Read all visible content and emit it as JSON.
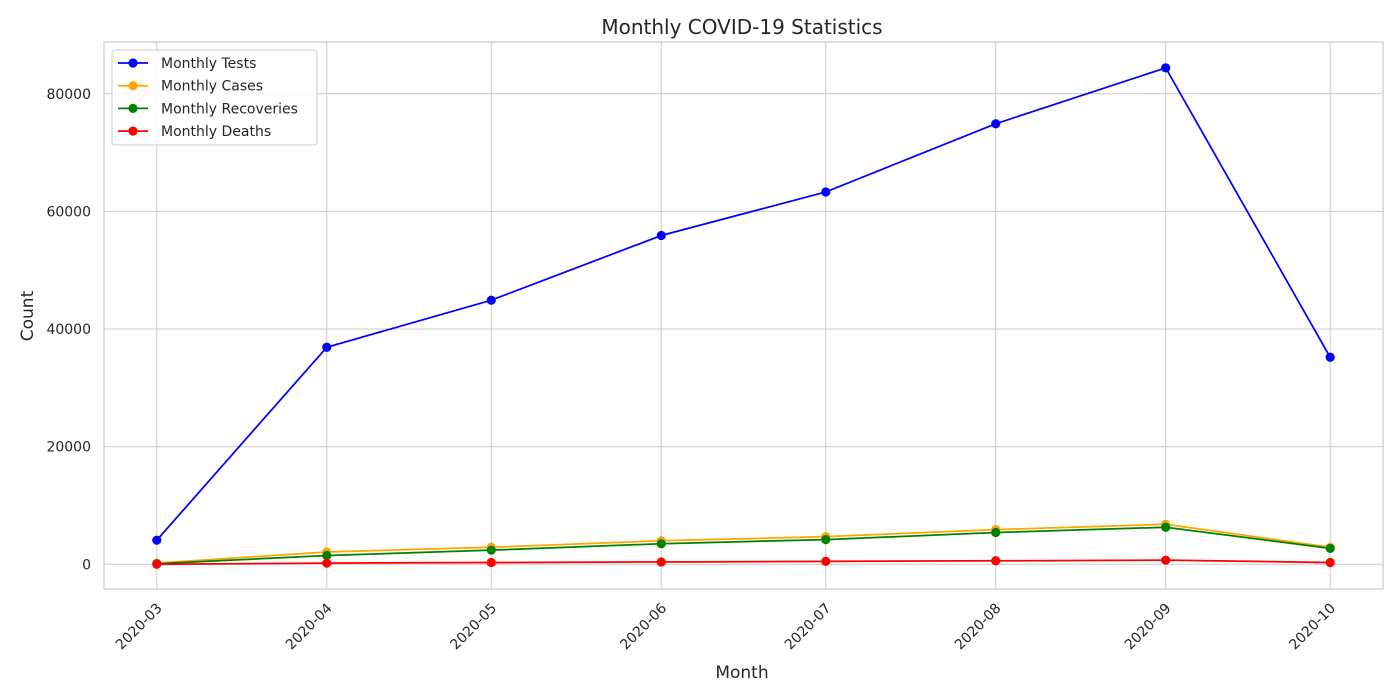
{
  "chart_data": {
    "type": "line",
    "title": "Monthly COVID-19 Statistics",
    "xlabel": "Month",
    "ylabel": "Count",
    "categories": [
      "2020-03",
      "2020-04",
      "2020-05",
      "2020-06",
      "2020-07",
      "2020-08",
      "2020-09",
      "2020-10"
    ],
    "x": [
      "2020-02-29",
      "2020-03-31",
      "2020-04-30",
      "2020-05-31",
      "2020-06-30",
      "2020-07-31",
      "2020-08-31",
      "2020-09-30"
    ],
    "ylim": [
      -4200,
      88800
    ],
    "yticks": [
      0,
      20000,
      40000,
      60000,
      80000
    ],
    "grid": true,
    "legend_position": "top-left",
    "series": [
      {
        "name": "Monthly Tests",
        "color": "#0000ff",
        "values": [
          4100,
          36900,
          44900,
          55900,
          63300,
          74900,
          84400,
          35200
        ]
      },
      {
        "name": "Monthly Cases",
        "color": "#ffa500",
        "values": [
          200,
          2100,
          2900,
          4000,
          4700,
          5900,
          6800,
          2900
        ]
      },
      {
        "name": "Monthly Recoveries",
        "color": "#008000",
        "values": [
          100,
          1500,
          2400,
          3500,
          4200,
          5400,
          6300,
          2700
        ]
      },
      {
        "name": "Monthly Deaths",
        "color": "#ff0000",
        "values": [
          0,
          200,
          300,
          400,
          500,
          600,
          700,
          300
        ]
      }
    ]
  }
}
